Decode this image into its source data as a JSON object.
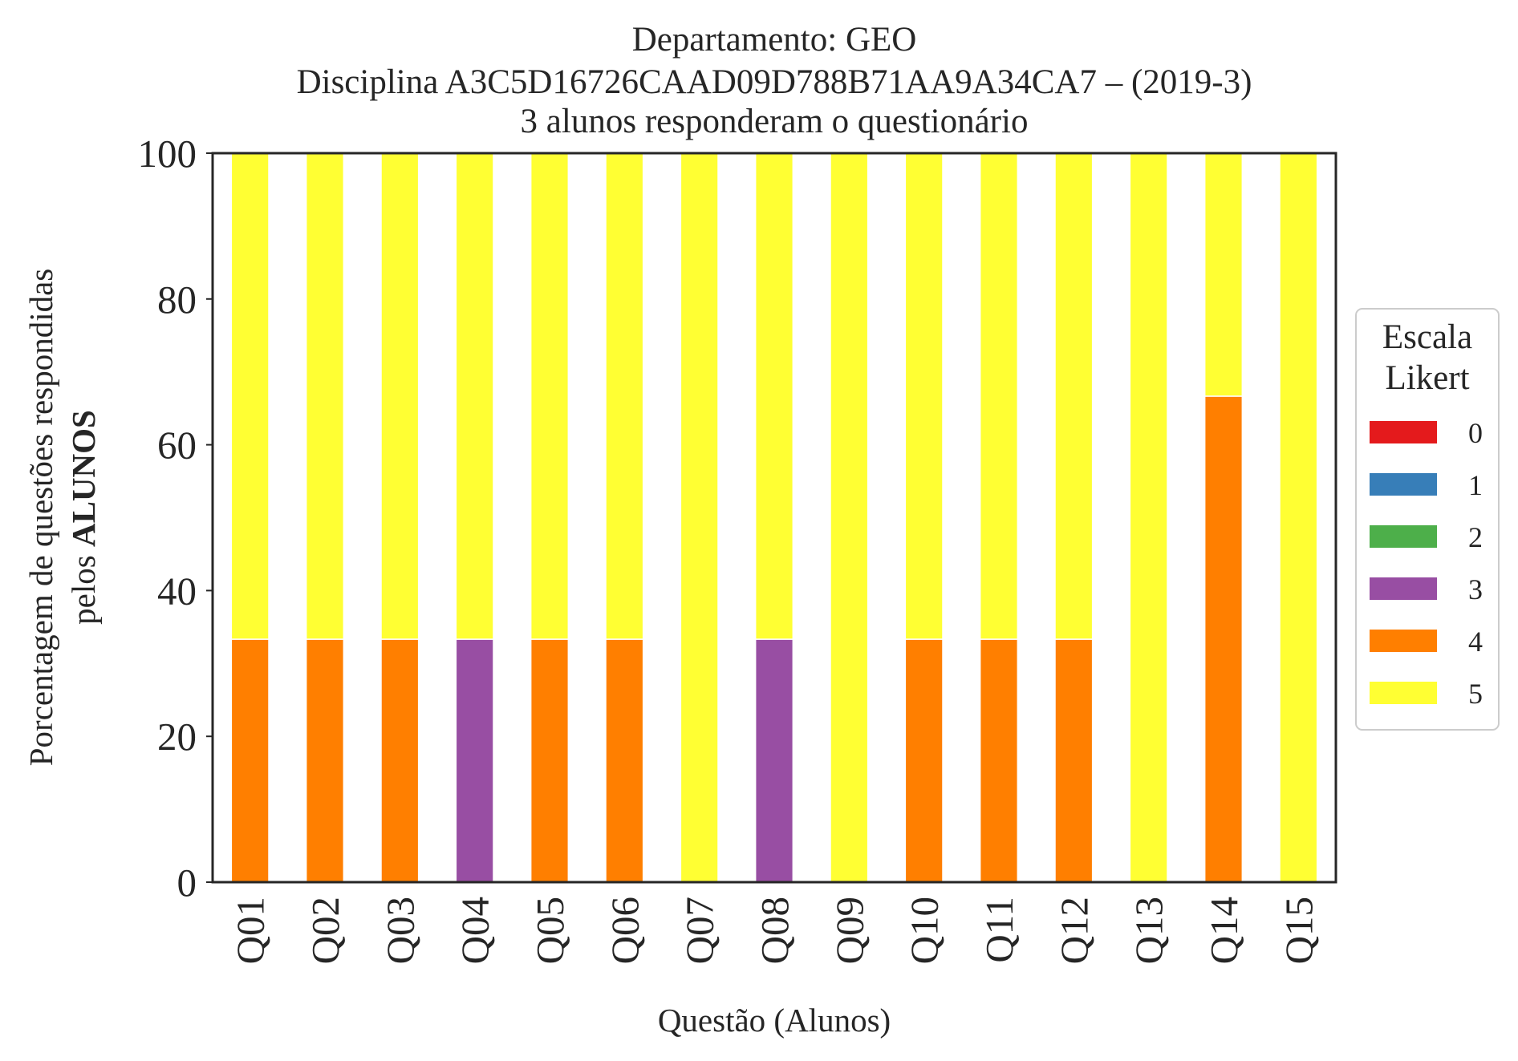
{
  "chart_data": {
    "type": "bar",
    "stacked": true,
    "title_lines": [
      "Departamento: GEO",
      "Disciplina A3C5D16726CAAD09D788B71AA9A34CA7 – (2019-3)",
      "3 alunos responderam o questionário"
    ],
    "xlabel": "Questão (Alunos)",
    "ylabel_line1": "Porcentagem de questões respondidas",
    "ylabel_line2_prefix": "pelos ",
    "ylabel_line2_bold": "ALUNOS",
    "ylim": [
      0,
      100
    ],
    "yticks": [
      "0",
      "20",
      "40",
      "60",
      "80",
      "100"
    ],
    "categories": [
      "Q01",
      "Q02",
      "Q03",
      "Q04",
      "Q05",
      "Q06",
      "Q07",
      "Q08",
      "Q09",
      "Q10",
      "Q11",
      "Q12",
      "Q13",
      "Q14",
      "Q15"
    ],
    "series": [
      {
        "name": "0",
        "color": "#e41a1c",
        "values": [
          0,
          0,
          0,
          0,
          0,
          0,
          0,
          0,
          0,
          0,
          0,
          0,
          0,
          0,
          0
        ]
      },
      {
        "name": "1",
        "color": "#377eb8",
        "values": [
          0,
          0,
          0,
          0,
          0,
          0,
          0,
          0,
          0,
          0,
          0,
          0,
          0,
          0,
          0
        ]
      },
      {
        "name": "2",
        "color": "#4daf4a",
        "values": [
          0,
          0,
          0,
          0,
          0,
          0,
          0,
          0,
          0,
          0,
          0,
          0,
          0,
          0,
          0
        ]
      },
      {
        "name": "3",
        "color": "#984ea3",
        "values": [
          0,
          0,
          0,
          33.33,
          0,
          0,
          0,
          33.33,
          0,
          0,
          0,
          0,
          0,
          0,
          0
        ]
      },
      {
        "name": "4",
        "color": "#ff7f00",
        "values": [
          33.33,
          33.33,
          33.33,
          0,
          33.33,
          33.33,
          0,
          0,
          0,
          33.33,
          33.33,
          33.33,
          0,
          66.67,
          0
        ]
      },
      {
        "name": "5",
        "color": "#ffff33",
        "values": [
          66.67,
          66.67,
          66.67,
          66.67,
          66.67,
          66.67,
          100,
          66.67,
          100,
          66.67,
          66.67,
          66.67,
          100,
          33.33,
          100
        ]
      }
    ],
    "legend": {
      "title_lines": [
        "Escala",
        "Likert"
      ],
      "placement": "right"
    },
    "grid": false
  }
}
